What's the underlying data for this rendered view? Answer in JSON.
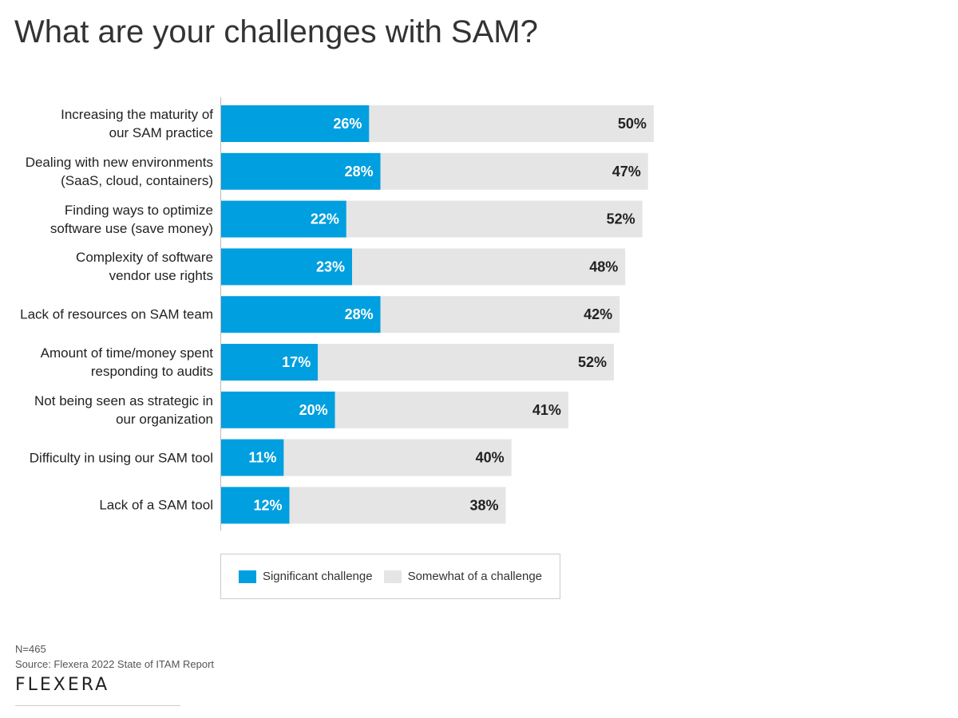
{
  "chart_data": {
    "type": "bar",
    "stacked": true,
    "orientation": "horizontal",
    "title": "What are your challenges with SAM?",
    "categories": [
      "Increasing the maturity of our SAM practice",
      "Dealing with new environments (SaaS, cloud, containers)",
      "Finding ways to optimize software use (save money)",
      "Complexity of software vendor use rights",
      "Lack of resources on SAM team",
      "Amount of time/money spent responding to audits",
      "Not being seen as strategic in our organization",
      "Difficulty in using our SAM tool",
      "Lack of a SAM tool"
    ],
    "series": [
      {
        "name": "Significant challenge",
        "color": "#009fdf",
        "values": [
          26,
          28,
          22,
          23,
          28,
          17,
          20,
          11,
          12
        ]
      },
      {
        "name": "Somewhat of a challenge",
        "color": "#e5e5e5",
        "values": [
          50,
          47,
          52,
          48,
          42,
          52,
          41,
          40,
          38
        ]
      }
    ],
    "xlim": [
      0,
      100
    ],
    "legend": "bottom"
  },
  "footer": {
    "n": "N=465",
    "source": "Source: Flexera 2022 State of ITAM Report",
    "logo": "FLEXERA"
  }
}
